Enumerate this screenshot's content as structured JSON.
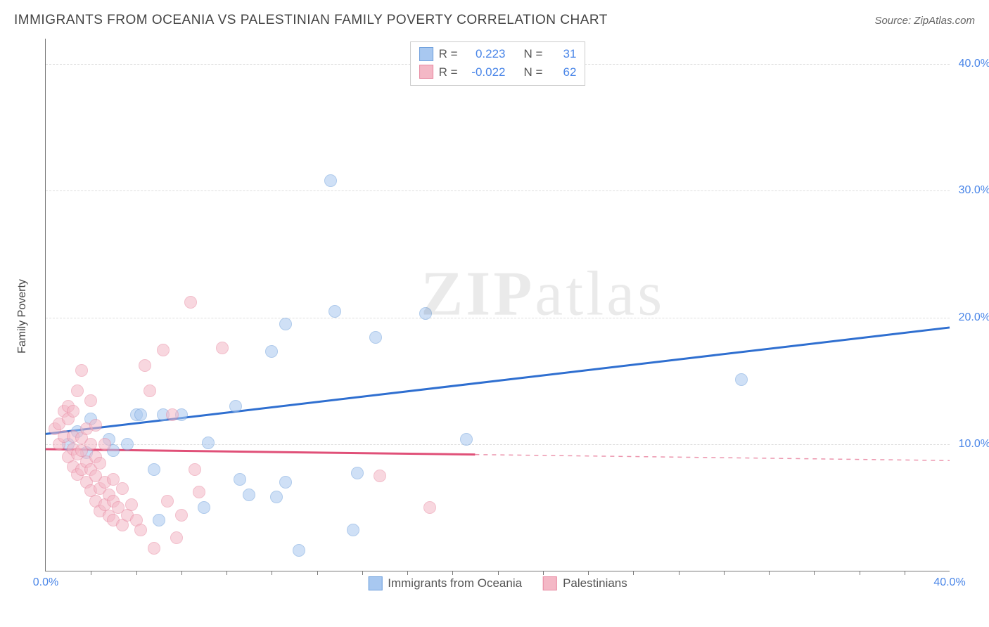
{
  "title": "IMMIGRANTS FROM OCEANIA VS PALESTINIAN FAMILY POVERTY CORRELATION CHART",
  "source": "Source: ZipAtlas.com",
  "ylabel": "Family Poverty",
  "watermark_bold": "ZIP",
  "watermark_rest": "atlas",
  "chart": {
    "type": "scatter",
    "xlim": [
      0,
      40
    ],
    "ylim": [
      0,
      42
    ],
    "x_ticks_major": [
      0,
      40
    ],
    "x_ticks_minor": [
      2,
      4,
      6,
      8,
      10,
      12,
      14,
      16,
      18,
      20,
      22,
      24,
      26,
      28,
      30,
      32,
      34,
      36,
      38
    ],
    "x_tick_labels": {
      "0": "0.0%",
      "40": "40.0%"
    },
    "y_ticks": [
      10,
      20,
      30,
      40
    ],
    "y_tick_labels": {
      "10": "10.0%",
      "20": "20.0%",
      "30": "30.0%",
      "40": "40.0%"
    },
    "grid_color": "#dddddd",
    "axis_color": "#777777",
    "background_color": "#ffffff",
    "marker_radius": 9,
    "marker_opacity": 0.55,
    "line_width": 3,
    "series": [
      {
        "name": "Immigrants from Oceania",
        "color_fill": "#a8c8f0",
        "color_stroke": "#6fa0dc",
        "line_color": "#2f6fd0",
        "r": 0.223,
        "n": 31,
        "r_text": "0.223",
        "n_text": "31",
        "trend": {
          "x1": 0,
          "y1": 10.8,
          "x2": 40,
          "y2": 19.2,
          "solid_until_x": 40
        },
        "points": [
          [
            4.0,
            12.3
          ],
          [
            4.2,
            12.3
          ],
          [
            3.6,
            10.0
          ],
          [
            5.2,
            12.3
          ],
          [
            6.0,
            12.3
          ],
          [
            2.8,
            10.4
          ],
          [
            3.0,
            9.5
          ],
          [
            4.8,
            8.0
          ],
          [
            7.2,
            10.1
          ],
          [
            8.4,
            13.0
          ],
          [
            10.0,
            17.3
          ],
          [
            10.6,
            19.5
          ],
          [
            12.8,
            20.5
          ],
          [
            14.6,
            18.4
          ],
          [
            16.8,
            20.3
          ],
          [
            12.6,
            30.8
          ],
          [
            18.6,
            10.4
          ],
          [
            13.8,
            7.7
          ],
          [
            10.6,
            7.0
          ],
          [
            10.2,
            5.8
          ],
          [
            11.2,
            1.6
          ],
          [
            13.6,
            3.2
          ],
          [
            9.0,
            6.0
          ],
          [
            7.0,
            5.0
          ],
          [
            5.0,
            4.0
          ],
          [
            8.6,
            7.2
          ],
          [
            30.8,
            15.1
          ],
          [
            1.8,
            9.3
          ],
          [
            1.4,
            11.0
          ],
          [
            2.0,
            12.0
          ],
          [
            1.0,
            10.0
          ]
        ]
      },
      {
        "name": "Palestinians",
        "color_fill": "#f4b8c6",
        "color_stroke": "#e88aa2",
        "line_color": "#e05078",
        "r": -0.022,
        "n": 62,
        "r_text": "-0.022",
        "n_text": "62",
        "trend": {
          "x1": 0,
          "y1": 9.6,
          "x2": 40,
          "y2": 8.7,
          "solid_until_x": 19
        },
        "points": [
          [
            0.4,
            11.2
          ],
          [
            0.6,
            10.0
          ],
          [
            0.6,
            11.6
          ],
          [
            0.8,
            10.6
          ],
          [
            0.8,
            12.6
          ],
          [
            1.0,
            9.0
          ],
          [
            1.0,
            12.0
          ],
          [
            1.0,
            13.0
          ],
          [
            1.2,
            8.2
          ],
          [
            1.2,
            9.6
          ],
          [
            1.2,
            10.6
          ],
          [
            1.2,
            12.6
          ],
          [
            1.4,
            7.6
          ],
          [
            1.4,
            9.2
          ],
          [
            1.4,
            14.2
          ],
          [
            1.6,
            8.0
          ],
          [
            1.6,
            9.5
          ],
          [
            1.6,
            10.5
          ],
          [
            1.6,
            15.8
          ],
          [
            1.8,
            7.0
          ],
          [
            1.8,
            8.6
          ],
          [
            1.8,
            11.2
          ],
          [
            2.0,
            6.3
          ],
          [
            2.0,
            8.0
          ],
          [
            2.0,
            10.0
          ],
          [
            2.0,
            13.4
          ],
          [
            2.2,
            5.5
          ],
          [
            2.2,
            7.5
          ],
          [
            2.2,
            9.0
          ],
          [
            2.2,
            11.5
          ],
          [
            2.4,
            4.7
          ],
          [
            2.4,
            6.5
          ],
          [
            2.4,
            8.5
          ],
          [
            2.6,
            5.2
          ],
          [
            2.6,
            7.0
          ],
          [
            2.6,
            10.0
          ],
          [
            2.8,
            4.3
          ],
          [
            2.8,
            6.0
          ],
          [
            3.0,
            4.0
          ],
          [
            3.0,
            5.5
          ],
          [
            3.0,
            7.2
          ],
          [
            3.2,
            5.0
          ],
          [
            3.4,
            3.6
          ],
          [
            3.4,
            6.5
          ],
          [
            3.6,
            4.4
          ],
          [
            3.8,
            5.2
          ],
          [
            4.0,
            4.0
          ],
          [
            4.2,
            3.2
          ],
          [
            4.4,
            16.2
          ],
          [
            4.6,
            14.2
          ],
          [
            5.2,
            17.4
          ],
          [
            5.4,
            5.5
          ],
          [
            5.6,
            12.3
          ],
          [
            6.0,
            4.4
          ],
          [
            6.4,
            21.2
          ],
          [
            6.6,
            8.0
          ],
          [
            6.8,
            6.2
          ],
          [
            7.8,
            17.6
          ],
          [
            14.8,
            7.5
          ],
          [
            17.0,
            5.0
          ],
          [
            4.8,
            1.8
          ],
          [
            5.8,
            2.6
          ]
        ]
      }
    ]
  },
  "legend_top": {
    "r_label": "R  =",
    "n_label": "N  ="
  },
  "legend_bottom": {
    "items": [
      "Immigrants from Oceania",
      "Palestinians"
    ]
  }
}
